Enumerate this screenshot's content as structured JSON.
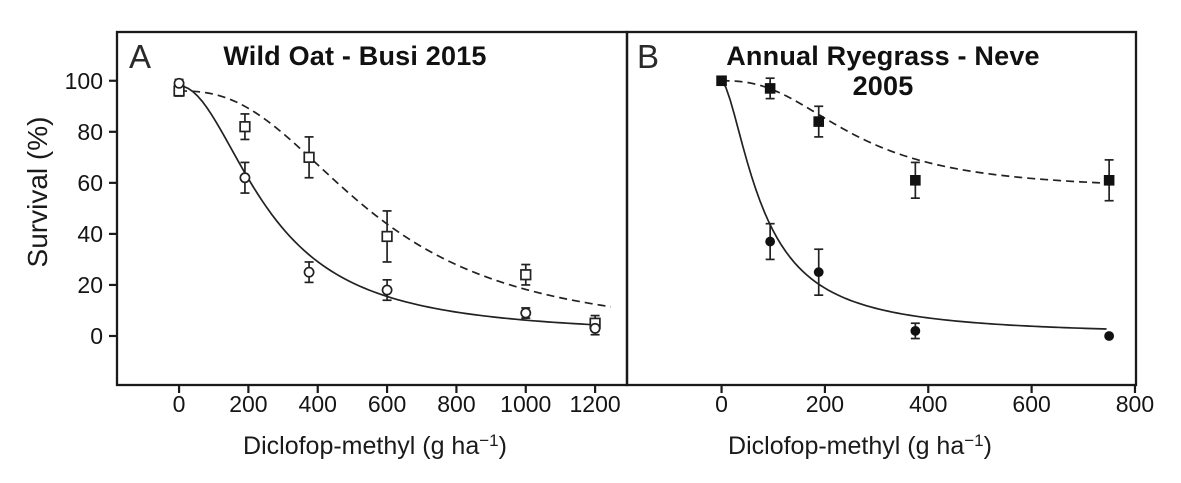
{
  "figure": {
    "ylabel": "Survival (%)",
    "xlabel": {
      "prefix": "Diclofop-methyl (g ha",
      "sup": "−1",
      "suffix": ")"
    }
  },
  "chart_data": [
    {
      "type": "scatter",
      "panel_label": "A",
      "title": "Wild Oat - Busi 2015",
      "xlabel": "Diclofop-methyl (g ha⁻¹)",
      "ylabel": "Survival (%)",
      "xlim": [
        -179,
        1292
      ],
      "ylim": [
        -19.2,
        119.1
      ],
      "xticks": [
        0,
        200,
        400,
        600,
        800,
        1000,
        1200
      ],
      "yticks": [
        0,
        20,
        40,
        60,
        80,
        100
      ],
      "grid": false,
      "legend": "none",
      "series": [
        {
          "name": "open-squares-dashed-line",
          "marker": "open-square",
          "line": "dashed",
          "x": [
            0,
            190,
            375,
            600,
            1000,
            1200
          ],
          "y": [
            96,
            82,
            70,
            39,
            24,
            5
          ],
          "err": [
            2,
            5,
            8,
            10,
            4,
            3
          ],
          "fit": {
            "model": "log-logistic",
            "c": 0,
            "d": 96,
            "e": 560,
            "b": 2.5,
            "xend": 1245
          }
        },
        {
          "name": "open-circles-solid-line",
          "marker": "open-circle",
          "line": "solid",
          "x": [
            0,
            190,
            375,
            600,
            1000,
            1200
          ],
          "y": [
            99,
            62,
            25,
            18,
            9,
            3
          ],
          "err": [
            1.5,
            6,
            4,
            4,
            2,
            2.5
          ],
          "fit": {
            "model": "log-logistic",
            "c": 0,
            "d": 98,
            "e": 260,
            "b": 2.0,
            "xend": 1200
          }
        }
      ]
    },
    {
      "type": "scatter",
      "panel_label": "B",
      "title": "Annual Ryegrass - Neve 2005",
      "xlabel": "Diclofop-methyl (g ha⁻¹)",
      "ylabel": "Survival (%)",
      "xlim": [
        -183,
        802
      ],
      "ylim": [
        -19.2,
        119.1
      ],
      "xticks": [
        0,
        200,
        400,
        600,
        800
      ],
      "yticks": [],
      "grid": false,
      "legend": "none",
      "series": [
        {
          "name": "filled-squares-dashed-line",
          "marker": "filled-square",
          "line": "dashed",
          "x": [
            0,
            94,
            188,
            375,
            750
          ],
          "y": [
            100,
            97,
            84,
            61,
            61
          ],
          "err": [
            0,
            4,
            6,
            7,
            8
          ],
          "fit": {
            "model": "log-logistic",
            "c": 57,
            "d": 100,
            "e": 260,
            "b": 2.5,
            "xend": 753
          }
        },
        {
          "name": "filled-circles-solid-line",
          "marker": "filled-circle",
          "line": "solid",
          "x": [
            0,
            94,
            188,
            375,
            750
          ],
          "y": [
            100,
            37,
            25,
            2,
            0
          ],
          "err": [
            0,
            7,
            9,
            3,
            0
          ],
          "fit": {
            "model": "log-logistic",
            "c": 0,
            "d": 100,
            "e": 80,
            "b": 1.6,
            "xend": 745
          }
        }
      ]
    }
  ]
}
